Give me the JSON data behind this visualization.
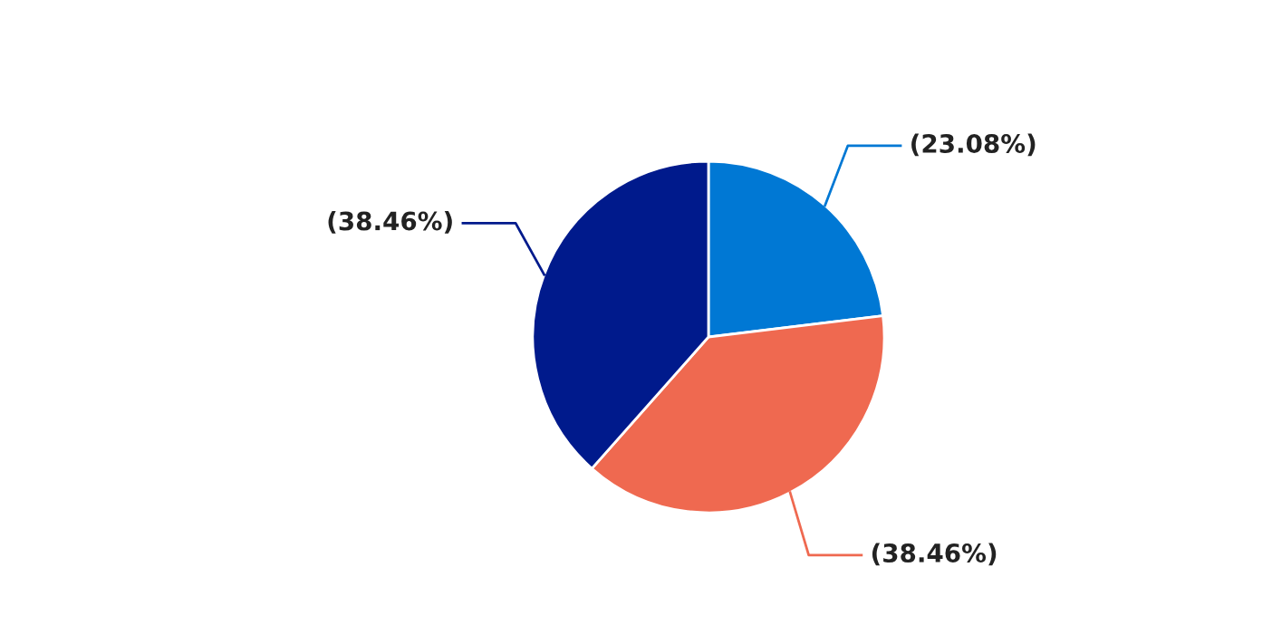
{
  "chart_data": {
    "type": "pie",
    "categories": [
      null,
      null,
      null
    ],
    "values": [
      23.08,
      38.46,
      38.46
    ],
    "colors": [
      "#0078d4",
      "#ef6950",
      "#001a8c"
    ],
    "value_labels": [
      "(23.08%)",
      "(38.46%)",
      "(38.46%)"
    ]
  }
}
